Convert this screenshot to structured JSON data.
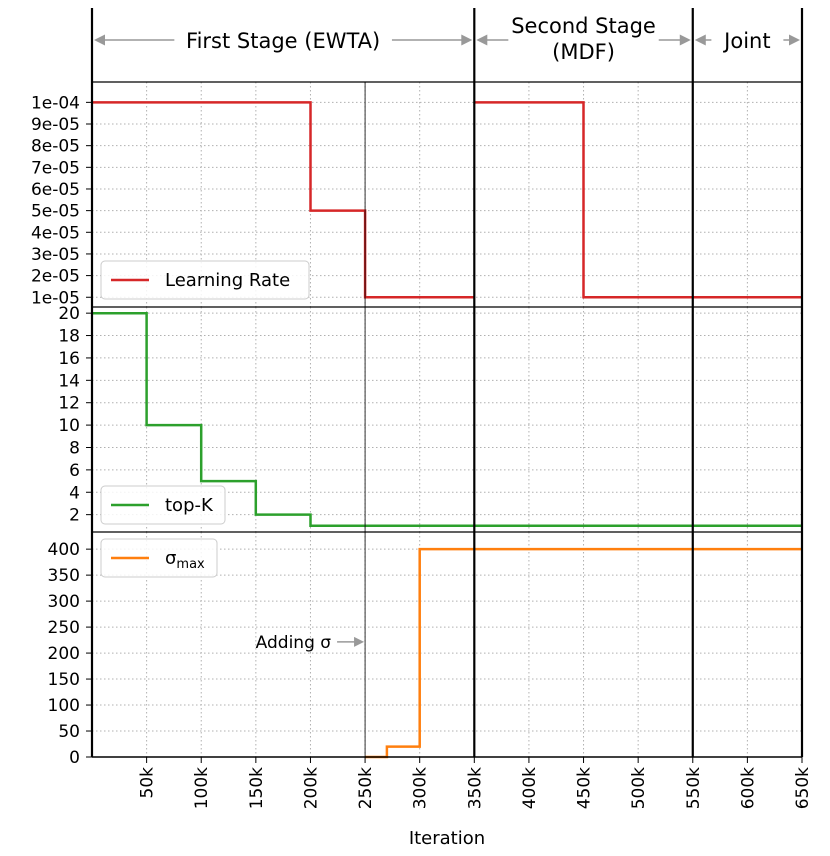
{
  "chart_data": {
    "type": "line",
    "xlabel": "Iteration",
    "x_ticks": [
      50000,
      100000,
      150000,
      200000,
      250000,
      300000,
      350000,
      400000,
      450000,
      500000,
      550000,
      600000,
      650000
    ],
    "x_tick_labels": [
      "50k",
      "100k",
      "150k",
      "200k",
      "250k",
      "300k",
      "350k",
      "400k",
      "450k",
      "500k",
      "550k",
      "600k",
      "650k"
    ],
    "xlim": [
      0,
      650000
    ],
    "grid": true,
    "stages": [
      {
        "label": "First Stage (EWTA)",
        "start": 0,
        "end": 350000
      },
      {
        "label": "Second Stage\n(MDF)",
        "start": 350000,
        "end": 550000
      },
      {
        "label": "Joint",
        "start": 550000,
        "end": 650000
      }
    ],
    "panels": [
      {
        "series": [
          {
            "name": "Learning Rate",
            "color": "#d62728",
            "segments": [
              [
                [
                  0,
                  0.0001
                ],
                [
                  200000,
                  0.0001
                ],
                [
                  200000,
                  5e-05
                ],
                [
                  250000,
                  5e-05
                ],
                [
                  250000,
                  1e-05
                ],
                [
                  350000,
                  1e-05
                ]
              ],
              [
                [
                  350000,
                  0.0001
                ],
                [
                  450000,
                  0.0001
                ],
                [
                  450000,
                  1e-05
                ],
                [
                  650000,
                  1e-05
                ]
              ]
            ]
          }
        ],
        "yticks": [
          1e-05,
          2e-05,
          3e-05,
          4e-05,
          5e-05,
          6e-05,
          7e-05,
          8e-05,
          9e-05,
          0.0001
        ],
        "ytick_labels": [
          "1e-05",
          "2e-05",
          "3e-05",
          "4e-05",
          "5e-05",
          "6e-05",
          "7e-05",
          "8e-05",
          "9e-05",
          "1e-04"
        ],
        "ylim": [
          5.5e-06,
          0.0001094
        ],
        "legend_location": "lower-left"
      },
      {
        "series": [
          {
            "name": "top-K",
            "color": "#2ca02c",
            "segments": [
              [
                [
                  0,
                  20
                ],
                [
                  50000,
                  20
                ],
                [
                  50000,
                  10
                ],
                [
                  100000,
                  10
                ],
                [
                  100000,
                  5
                ],
                [
                  150000,
                  5
                ],
                [
                  150000,
                  2
                ],
                [
                  200000,
                  2
                ],
                [
                  200000,
                  1
                ],
                [
                  650000,
                  1
                ]
              ]
            ]
          }
        ],
        "yticks": [
          2,
          4,
          6,
          8,
          10,
          12,
          14,
          16,
          18,
          20
        ],
        "ytick_labels": [
          "2",
          "4",
          "6",
          "8",
          "10",
          "12",
          "14",
          "16",
          "18",
          "20"
        ],
        "ylim": [
          0.45,
          20.55
        ],
        "legend_location": "lower-left"
      },
      {
        "series": [
          {
            "name": "σmax",
            "legend_base": "σ",
            "legend_sub": "max",
            "color": "#ff7f0e",
            "segments": [
              [
                [
                  250000,
                  0
                ],
                [
                  270000,
                  0
                ],
                [
                  270000,
                  20
                ],
                [
                  300000,
                  20
                ],
                [
                  300000,
                  400
                ],
                [
                  650000,
                  400
                ]
              ]
            ]
          }
        ],
        "yticks": [
          0,
          50,
          100,
          150,
          200,
          250,
          300,
          350,
          400
        ],
        "ytick_labels": [
          "0",
          "50",
          "100",
          "150",
          "200",
          "250",
          "300",
          "350",
          "400"
        ],
        "ylim": [
          0,
          433
        ],
        "legend_location": "upper-left"
      }
    ],
    "annotations": [
      {
        "text": "Adding σ",
        "x": 250000,
        "y": 210,
        "panel": 2
      }
    ]
  }
}
